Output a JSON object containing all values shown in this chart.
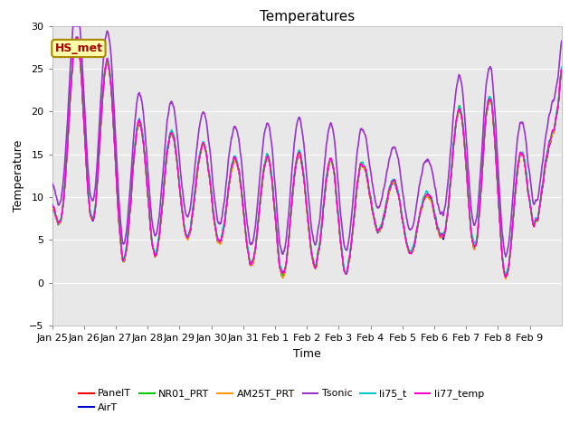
{
  "title": "Temperatures",
  "xlabel": "Time",
  "ylabel": "Temperature",
  "ylim": [
    -5,
    30
  ],
  "yticks": [
    -5,
    0,
    5,
    10,
    15,
    20,
    25,
    30
  ],
  "xtick_labels": [
    "Jan 25",
    "Jan 26",
    "Jan 27",
    "Jan 28",
    "Jan 29",
    "Jan 30",
    "Jan 31",
    "Feb 1",
    "Feb 2",
    "Feb 3",
    "Feb 4",
    "Feb 5",
    "Feb 6",
    "Feb 7",
    "Feb 8",
    "Feb 9"
  ],
  "series_colors": {
    "PanelT": "#ff0000",
    "AirT": "#0000cc",
    "NR01_PRT": "#00cc00",
    "AM25T_PRT": "#ff9900",
    "Tsonic": "#9933cc",
    "li75_t": "#00cccc",
    "li77_temp": "#ff00cc"
  },
  "series_widths": {
    "PanelT": 1.0,
    "AirT": 1.0,
    "NR01_PRT": 1.0,
    "AM25T_PRT": 1.0,
    "Tsonic": 1.2,
    "li75_t": 1.0,
    "li77_temp": 1.0
  },
  "annotation_text": "HS_met",
  "annotation_bg": "#ffffaa",
  "annotation_border": "#aa8800",
  "annotation_text_color": "#aa0000",
  "plot_bg": "#e8e8e8",
  "figure_bg": "#ffffff",
  "n_points": 1440
}
